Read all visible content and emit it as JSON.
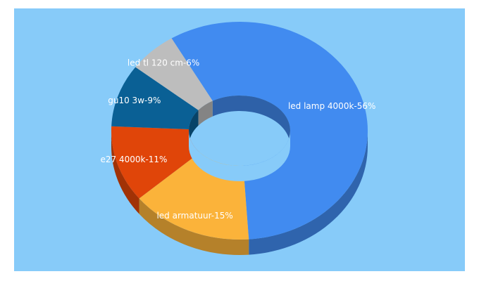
{
  "colors": {
    "background": "#87cbf9",
    "label_text": "#ffffff"
  },
  "chart_data": {
    "type": "pie",
    "variant": "3d-donut",
    "legend": "none",
    "labels_on_slices": true,
    "slices": [
      {
        "label": "led lamp 4000k-56%",
        "name": "led lamp 4000k",
        "value": 56,
        "color": "#418bf0"
      },
      {
        "label": "led armatuur-15%",
        "name": "led armatuur",
        "value": 15,
        "color": "#fbb33a"
      },
      {
        "label": "e27 4000k-11%",
        "name": "e27 4000k",
        "value": 11,
        "color": "#e04509"
      },
      {
        "label": "gu10 3w-9%",
        "name": "gu10 3w",
        "value": 9,
        "color": "#0a6095"
      },
      {
        "label": "led tl 120 cm-6%",
        "name": "led tl 120 cm",
        "value": 6,
        "color": "#bdbdbd"
      }
    ]
  }
}
